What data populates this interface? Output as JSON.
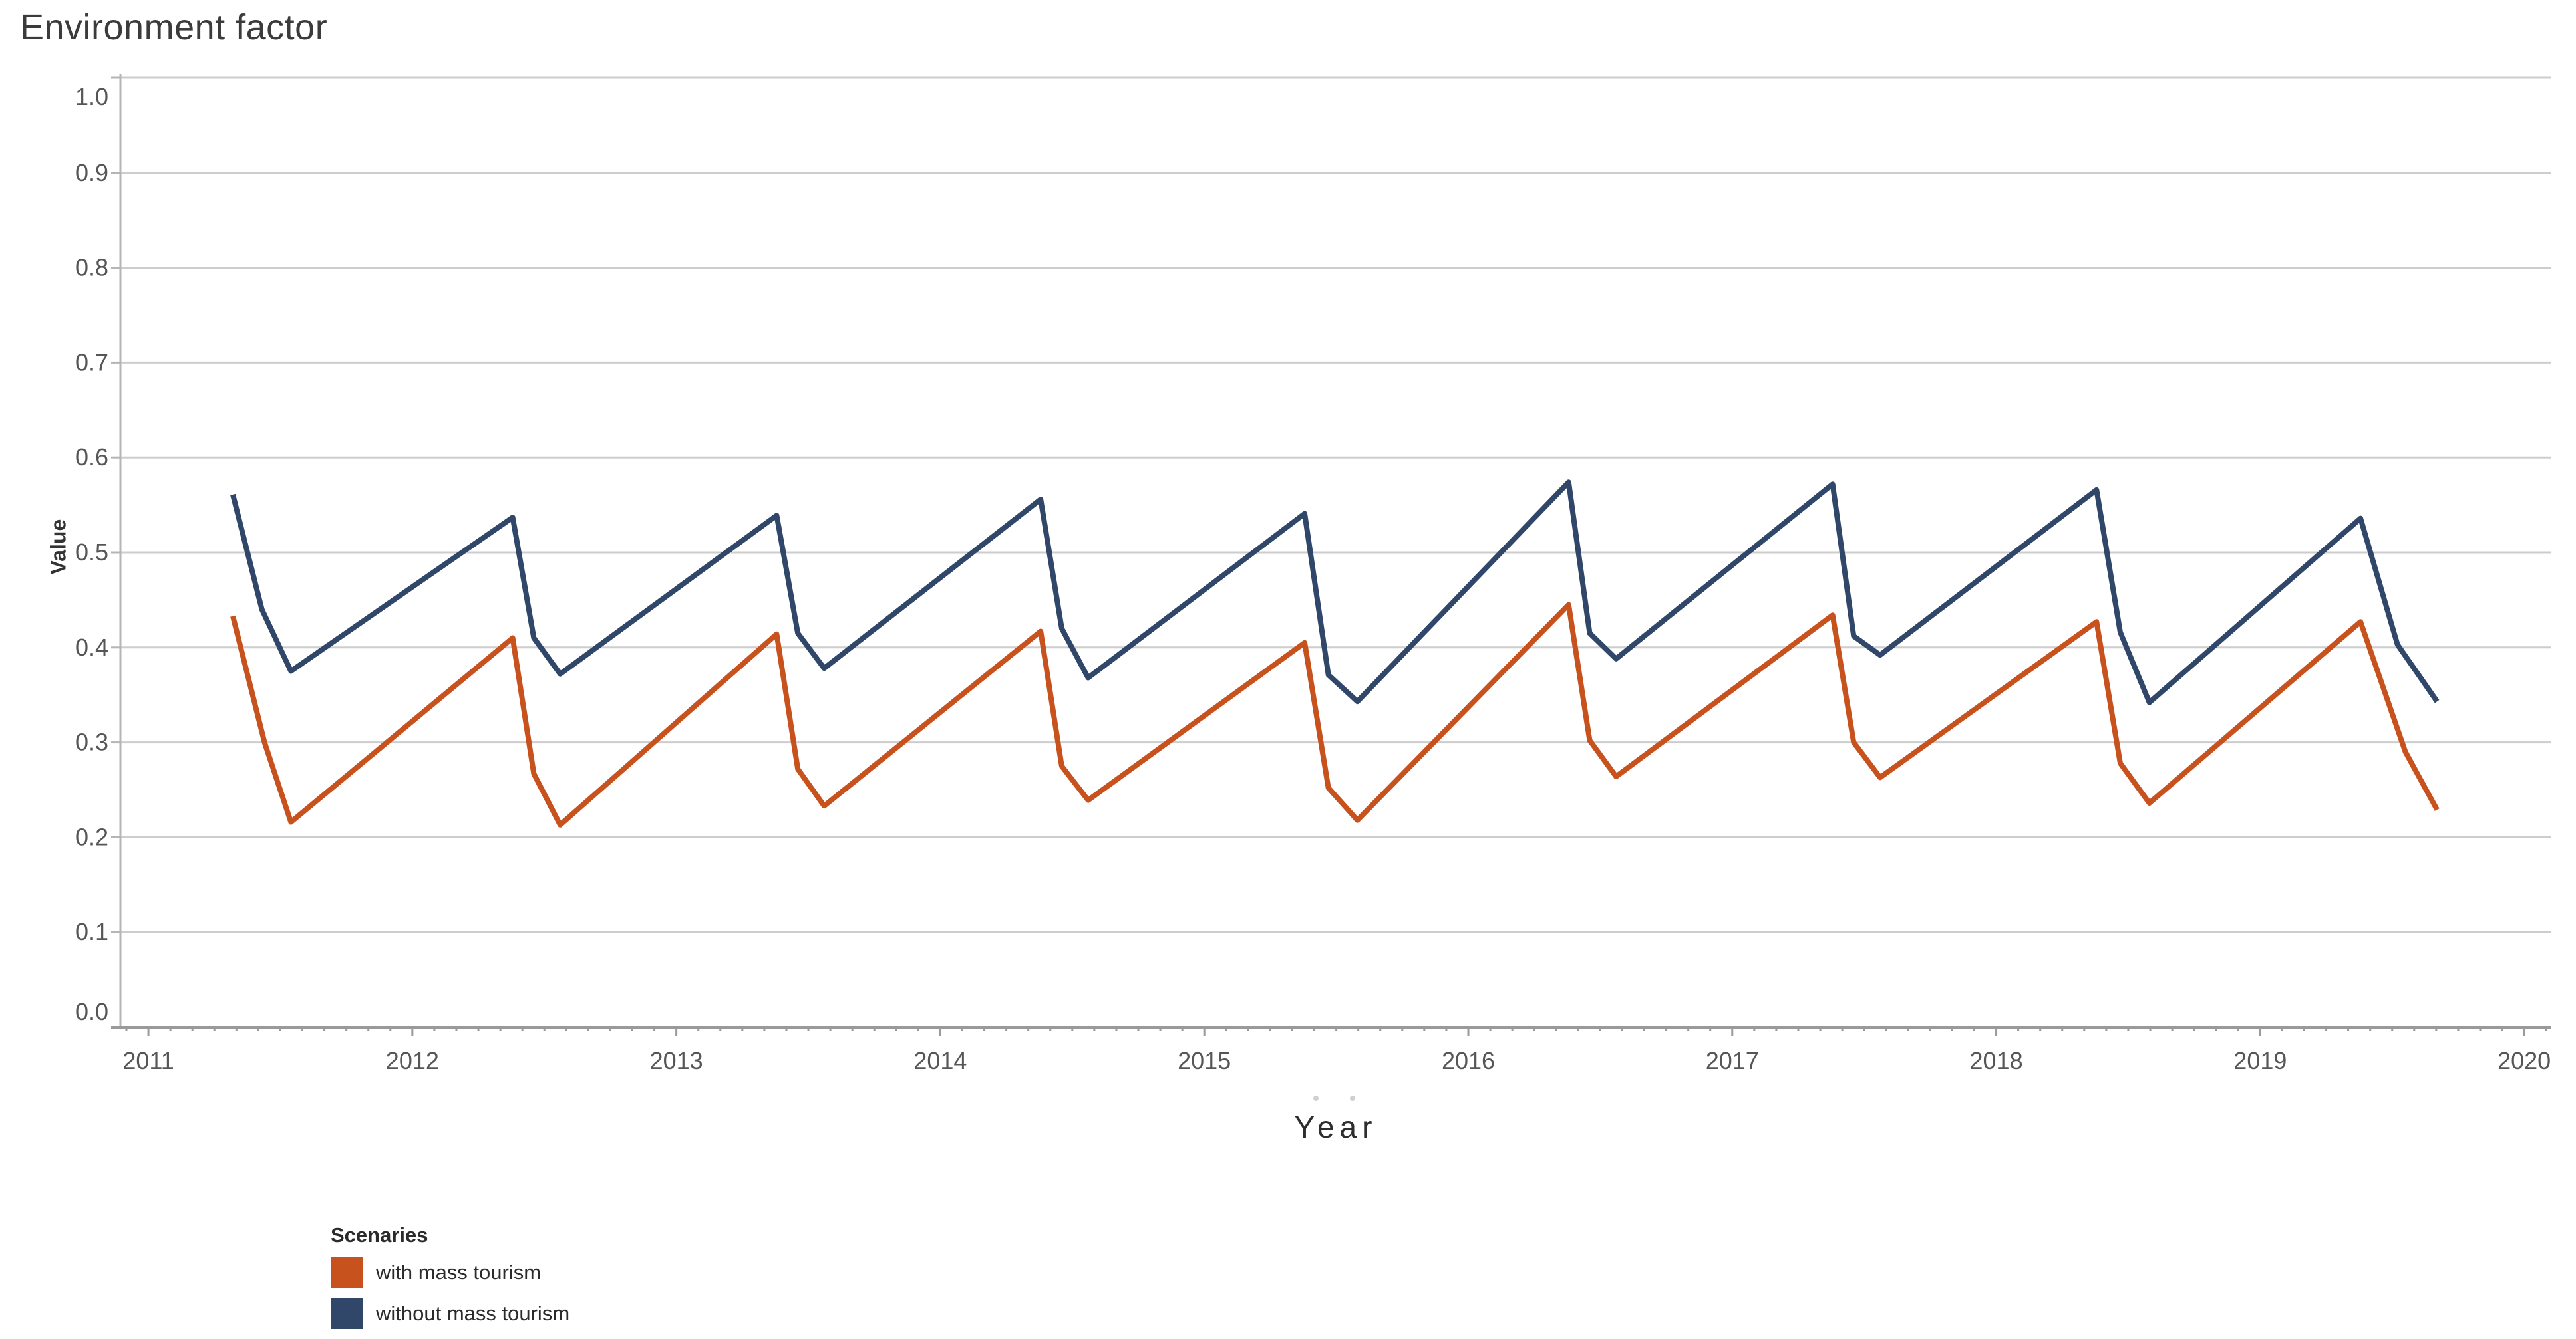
{
  "title": "Environment factor",
  "legend": {
    "title": "Scenaries",
    "items": [
      {
        "label": "with mass tourism",
        "color": "#c8521e"
      },
      {
        "label": "without mass tourism",
        "color": "#30476a"
      }
    ]
  },
  "colors": {
    "background": "#ffffff",
    "gridline": "#cdcdcd",
    "axis_line": "#9a9a9a",
    "tick_label": "#565656",
    "title_text": "#3b3b3b"
  },
  "chart_data": {
    "type": "line",
    "title": "Environment factor",
    "xlabel": "Year",
    "ylabel": "Value",
    "xlim": [
      2010.894,
      2020.103
    ],
    "ylim": [
      0.0,
      1.0
    ],
    "x_ticks": [
      2011,
      2012,
      2013,
      2014,
      2015,
      2016,
      2017,
      2018,
      2019,
      2020
    ],
    "y_ticks": [
      0.0,
      0.1,
      0.2,
      0.3,
      0.4,
      0.5,
      0.6,
      0.7,
      0.8,
      0.9,
      1.0
    ],
    "minor_x_tick_interval_years": 0.0833,
    "grid": true,
    "legend_title": "Scenaries",
    "legend_position": "bottom-left",
    "series": [
      {
        "name": "with mass tourism",
        "color": "#c8521e",
        "points": [
          [
            2011.32,
            0.433
          ],
          [
            2011.44,
            0.3
          ],
          [
            2011.54,
            0.216
          ],
          [
            2012.38,
            0.41
          ],
          [
            2012.46,
            0.267
          ],
          [
            2012.56,
            0.213
          ],
          [
            2013.38,
            0.414
          ],
          [
            2013.46,
            0.272
          ],
          [
            2013.56,
            0.233
          ],
          [
            2014.38,
            0.417
          ],
          [
            2014.46,
            0.275
          ],
          [
            2014.56,
            0.239
          ],
          [
            2015.38,
            0.405
          ],
          [
            2015.47,
            0.252
          ],
          [
            2015.58,
            0.218
          ],
          [
            2016.38,
            0.445
          ],
          [
            2016.46,
            0.302
          ],
          [
            2016.56,
            0.264
          ],
          [
            2017.38,
            0.434
          ],
          [
            2017.46,
            0.3
          ],
          [
            2017.56,
            0.263
          ],
          [
            2018.38,
            0.427
          ],
          [
            2018.47,
            0.278
          ],
          [
            2018.58,
            0.236
          ],
          [
            2019.38,
            0.427
          ],
          [
            2019.55,
            0.29
          ],
          [
            2019.67,
            0.229
          ]
        ]
      },
      {
        "name": "without mass tourism",
        "color": "#30476a",
        "points": [
          [
            2011.32,
            0.561
          ],
          [
            2011.43,
            0.44
          ],
          [
            2011.54,
            0.375
          ],
          [
            2012.38,
            0.537
          ],
          [
            2012.46,
            0.41
          ],
          [
            2012.56,
            0.372
          ],
          [
            2013.38,
            0.539
          ],
          [
            2013.46,
            0.415
          ],
          [
            2013.56,
            0.378
          ],
          [
            2014.38,
            0.556
          ],
          [
            2014.46,
            0.42
          ],
          [
            2014.56,
            0.368
          ],
          [
            2015.38,
            0.541
          ],
          [
            2015.47,
            0.371
          ],
          [
            2015.58,
            0.343
          ],
          [
            2016.38,
            0.574
          ],
          [
            2016.46,
            0.415
          ],
          [
            2016.56,
            0.388
          ],
          [
            2017.38,
            0.572
          ],
          [
            2017.46,
            0.412
          ],
          [
            2017.56,
            0.392
          ],
          [
            2018.38,
            0.566
          ],
          [
            2018.47,
            0.416
          ],
          [
            2018.58,
            0.342
          ],
          [
            2019.38,
            0.536
          ],
          [
            2019.52,
            0.403
          ],
          [
            2019.67,
            0.343
          ]
        ]
      }
    ]
  }
}
